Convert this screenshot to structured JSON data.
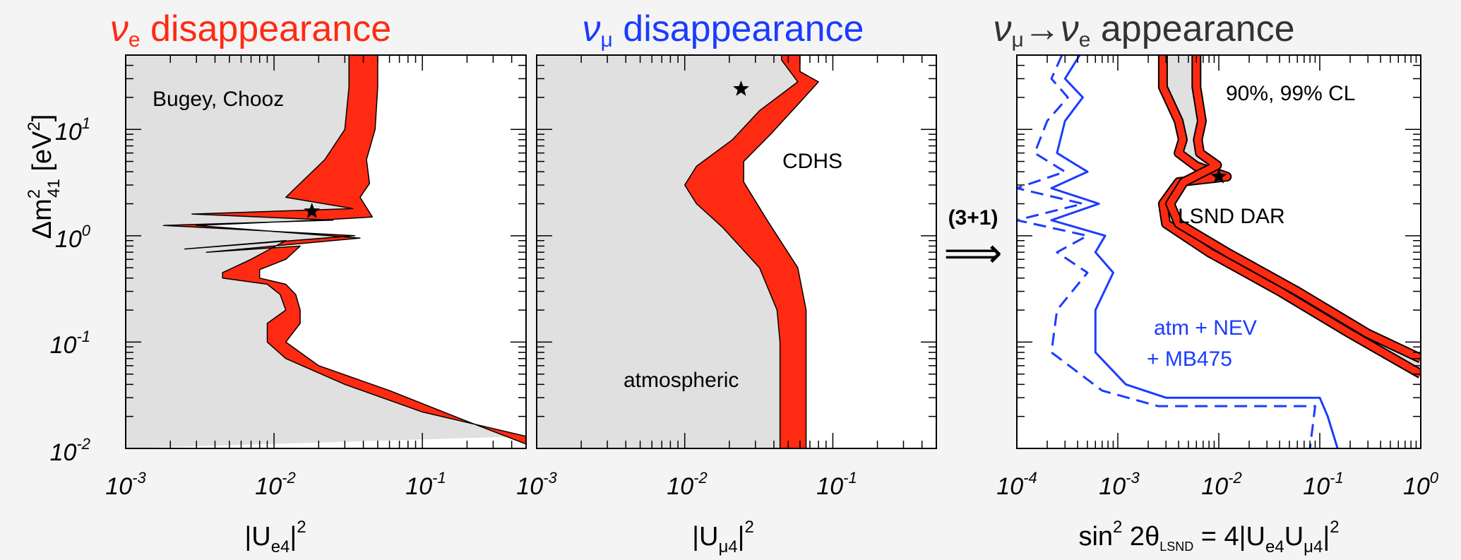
{
  "colors": {
    "excluded_fill": "#e0e0e0",
    "band_red": "#ff2a12",
    "outline": "#000000",
    "blue": "#1a3cff",
    "background": "#f4f4f4"
  },
  "panels": [
    {
      "title_nu": "ν",
      "title_sub": "e",
      "title_text": " disappearance",
      "title_color": "#ff2a12",
      "xlabel_main": "|U",
      "xlabel_sub": "e4",
      "xlabel_sup": "2",
      "annotations": [
        "Bugey, Chooz"
      ],
      "x_ticks": [
        "10",
        "10",
        "10"
      ],
      "x_tick_exps": [
        "-3",
        "-2",
        "-1"
      ]
    },
    {
      "title_nu": "ν",
      "title_sub": "μ",
      "title_text": " disappearance",
      "title_color": "#1a3cff",
      "xlabel_main": "|U",
      "xlabel_sub": "μ4",
      "xlabel_sup": "2",
      "annotations": [
        "CDHS",
        "atmospheric"
      ],
      "x_ticks": [
        "10",
        "10",
        "10"
      ],
      "x_tick_exps": [
        "-3",
        "-2",
        "-1"
      ]
    },
    {
      "title_nu1": "ν",
      "title_sub1": "μ",
      "title_arrow": "→",
      "title_nu2": "ν",
      "title_sub2": "e",
      "title_text": " appearance",
      "title_color": "#333333",
      "xlabel_main": "sin",
      "xlabel_sup1": "2",
      "xlabel_mid": " 2θ",
      "xlabel_sub1": "LSND",
      "xlabel_eq": " = 4|U",
      "xlabel_sub2": "e4",
      "xlabel_u": "U",
      "xlabel_sub3": "μ4",
      "xlabel_sup2": "2",
      "annotations": [
        "90%, 99% CL",
        "LSND DAR"
      ],
      "blue_labels": [
        "atm + NEV",
        "+ MB475"
      ],
      "x_ticks": [
        "10",
        "10",
        "10",
        "10",
        "10"
      ],
      "x_tick_exps": [
        "-4",
        "-3",
        "-2",
        "-1",
        "0"
      ]
    }
  ],
  "y_axis": {
    "label_main": "Δm",
    "label_sup": "2",
    "label_sub": "41",
    "label_unit": "  [eV",
    "label_unit_sup": "2",
    "label_close": "]",
    "ticks": [
      "10",
      "10",
      "10",
      "10"
    ],
    "tick_exps": [
      "1",
      "0",
      "-1",
      "-2"
    ]
  },
  "arrow": {
    "label": "(3+1)",
    "glyph": "⟹"
  },
  "chart_data": [
    {
      "type": "area",
      "title": "νe disappearance",
      "xlabel": "|Ue4|^2",
      "ylabel": "Δm²41 [eV²]",
      "xscale": "log",
      "yscale": "log",
      "xlim": [
        0.001,
        0.5
      ],
      "ylim": [
        0.01,
        50
      ],
      "series": [
        {
          "name": "90% CL",
          "x": [
            0.032,
            0.032,
            0.03,
            0.022,
            0.012,
            0.034,
            0.0028,
            0.025,
            0.0018,
            0.035,
            0.0025,
            0.012,
            0.007,
            0.0045,
            0.0045,
            0.009,
            0.011,
            0.012,
            0.009,
            0.009,
            0.012,
            0.03,
            0.1,
            0.5
          ],
          "y": [
            50,
            25,
            10,
            5.2,
            2.3,
            1.8,
            1.6,
            1.4,
            1.25,
            1.0,
            0.75,
            0.9,
            0.6,
            0.45,
            0.4,
            0.35,
            0.28,
            0.2,
            0.15,
            0.1,
            0.07,
            0.04,
            0.022,
            0.013
          ]
        },
        {
          "name": "99% CL",
          "x": [
            0.05,
            0.05,
            0.048,
            0.042,
            0.044,
            0.038,
            0.046,
            0.02,
            0.003,
            0.038,
            0.0035,
            0.015,
            0.012,
            0.008,
            0.008,
            0.012,
            0.014,
            0.015,
            0.015,
            0.012,
            0.02,
            0.06,
            0.2,
            0.5
          ],
          "y": [
            50,
            25,
            10,
            5.2,
            3.1,
            2.3,
            1.5,
            1.4,
            1.25,
            0.95,
            0.7,
            0.8,
            0.6,
            0.48,
            0.4,
            0.35,
            0.28,
            0.2,
            0.15,
            0.1,
            0.06,
            0.035,
            0.018,
            0.011
          ]
        }
      ],
      "best_fit": {
        "x": 0.018,
        "y": 1.7
      }
    },
    {
      "type": "area",
      "title": "νμ disappearance",
      "xlabel": "|Uμ4|^2",
      "ylabel": "Δm²41 [eV²]",
      "xscale": "log",
      "yscale": "log",
      "xlim": [
        0.001,
        0.5
      ],
      "ylim": [
        0.01,
        50
      ],
      "series": [
        {
          "name": "90% CL",
          "x": [
            0.045,
            0.045,
            0.058,
            0.032,
            0.021,
            0.012,
            0.01,
            0.012,
            0.018,
            0.032,
            0.042,
            0.044,
            0.044,
            0.044
          ],
          "y": [
            50,
            45,
            28,
            15,
            8,
            4.5,
            3.0,
            2.0,
            1.2,
            0.5,
            0.2,
            0.1,
            0.03,
            0.01
          ]
        },
        {
          "name": "99% CL",
          "x": [
            0.06,
            0.06,
            0.08,
            0.06,
            0.038,
            0.025,
            0.025,
            0.036,
            0.058,
            0.066,
            0.066,
            0.066
          ],
          "y": [
            50,
            35,
            28,
            18,
            9,
            5,
            3.2,
            1.4,
            0.5,
            0.2,
            0.05,
            0.01
          ]
        }
      ],
      "best_fit": {
        "x": 0.024,
        "y": 24
      }
    },
    {
      "type": "line",
      "title": "νμ→νe appearance",
      "xlabel": "sin² 2θLSND = 4|Ue4Uμ4|²",
      "ylabel": "Δm²41 [eV²]",
      "xscale": "log",
      "yscale": "log",
      "xlim": [
        0.0001,
        1
      ],
      "ylim": [
        0.01,
        50
      ],
      "series": [
        {
          "name": "LSND DAR 90% CL",
          "x": [
            0.0028,
            0.0028,
            0.004,
            0.0044,
            0.004,
            0.006,
            0.012,
            0.004,
            0.0028,
            0.003,
            0.008,
            0.04,
            0.2,
            1.0
          ],
          "y": [
            50,
            25,
            12,
            8,
            6,
            4.5,
            3.6,
            3.2,
            2.0,
            1.3,
            0.7,
            0.3,
            0.12,
            0.05
          ]
        },
        {
          "name": "LSND DAR 99% CL",
          "x": [
            0.006,
            0.006,
            0.0068,
            0.0062,
            0.0065,
            0.0096,
            0.0045,
            0.0033,
            0.004,
            0.012,
            0.06,
            0.3,
            1.0
          ],
          "y": [
            50,
            25,
            12,
            8,
            6,
            4.6,
            3.2,
            2.0,
            1.3,
            0.7,
            0.3,
            0.12,
            0.07
          ]
        },
        {
          "name": "atm + NEV + MB475 (solid)",
          "x": [
            0.00042,
            0.0003,
            0.00045,
            0.0003,
            0.00025,
            0.0005,
            0.00022,
            0.00065,
            0.00022,
            0.00075,
            0.0006,
            0.0009,
            0.0006,
            0.0006,
            0.0012,
            0.003,
            0.1,
            0.12,
            0.15
          ],
          "y": [
            50,
            30,
            20,
            12,
            6,
            4,
            2.8,
            2.0,
            1.4,
            1.0,
            0.7,
            0.45,
            0.2,
            0.08,
            0.04,
            0.03,
            0.03,
            0.02,
            0.01
          ]
        },
        {
          "name": "atm + NEV + MB475 (dashed)",
          "x": [
            0.00028,
            0.00022,
            0.00032,
            0.0002,
            0.00015,
            0.0003,
            0.0001,
            0.00045,
            0.0001,
            0.0005,
            0.00025,
            0.0005,
            0.00025,
            0.00022,
            0.0007,
            0.0025,
            0.09,
            0.08
          ],
          "y": [
            50,
            30,
            20,
            12,
            6,
            4,
            2.8,
            2.0,
            1.4,
            1.0,
            0.7,
            0.45,
            0.2,
            0.08,
            0.035,
            0.025,
            0.025,
            0.01
          ]
        }
      ],
      "best_fit": {
        "x": 0.01,
        "y": 3.6
      }
    }
  ]
}
